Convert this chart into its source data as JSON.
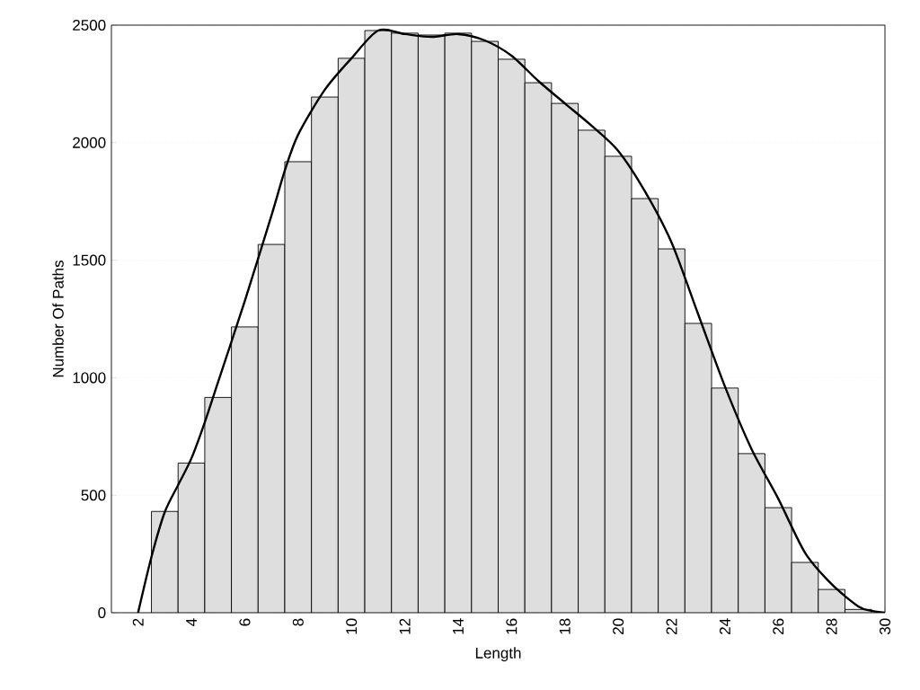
{
  "chart_data": {
    "type": "histogram",
    "xlabel": "Length",
    "ylabel": "Number Of Paths",
    "xlim": [
      1,
      30
    ],
    "ylim": [
      0,
      2500
    ],
    "xticks": [
      2,
      4,
      6,
      8,
      10,
      12,
      14,
      16,
      18,
      20,
      22,
      24,
      26,
      28,
      30
    ],
    "yticks": [
      0,
      500,
      1000,
      1500,
      2000,
      2500
    ],
    "grid": "y",
    "series": [
      {
        "color": "#dedede",
        "bins": [
          2.5,
          3.5,
          4.5,
          5.5,
          6.5,
          7.5,
          8.5,
          9.5,
          10.5,
          11.5,
          12.5,
          13.5,
          14.5,
          15.5,
          16.5,
          17.5,
          18.5,
          19.5,
          20.5,
          21.5,
          22.5,
          23.5,
          24.5,
          25.5,
          26.5,
          27.5,
          28.5,
          29.5
        ],
        "values": [
          431,
          637,
          916,
          1216,
          1567,
          1919,
          2194,
          2359,
          2477,
          2466,
          2458,
          2466,
          2431,
          2355,
          2255,
          2167,
          2053,
          1942,
          1762,
          1548,
          1231,
          956,
          677,
          447,
          214,
          99,
          14
        ]
      },
      {
        "type": "line",
        "color": "#000000",
        "marker": "none",
        "line_style": "solid",
        "x": [
          2,
          2.5,
          3,
          3.5,
          4,
          4.5,
          5,
          6,
          7,
          7.5,
          8,
          9,
          10,
          11,
          12,
          13,
          14,
          15,
          16,
          17,
          18,
          19,
          20,
          21,
          22,
          23,
          24,
          25,
          26,
          27,
          28,
          29,
          29.5,
          30
        ],
        "values": [
          0,
          237,
          428,
          543,
          657,
          810,
          982,
          1326,
          1690,
          1881,
          2034,
          2225,
          2359,
          2477,
          2462,
          2450,
          2462,
          2435,
          2370,
          2263,
          2167,
          2072,
          1965,
          1793,
          1575,
          1269,
          963,
          696,
          485,
          256,
          122,
          27,
          8,
          0
        ]
      }
    ]
  }
}
